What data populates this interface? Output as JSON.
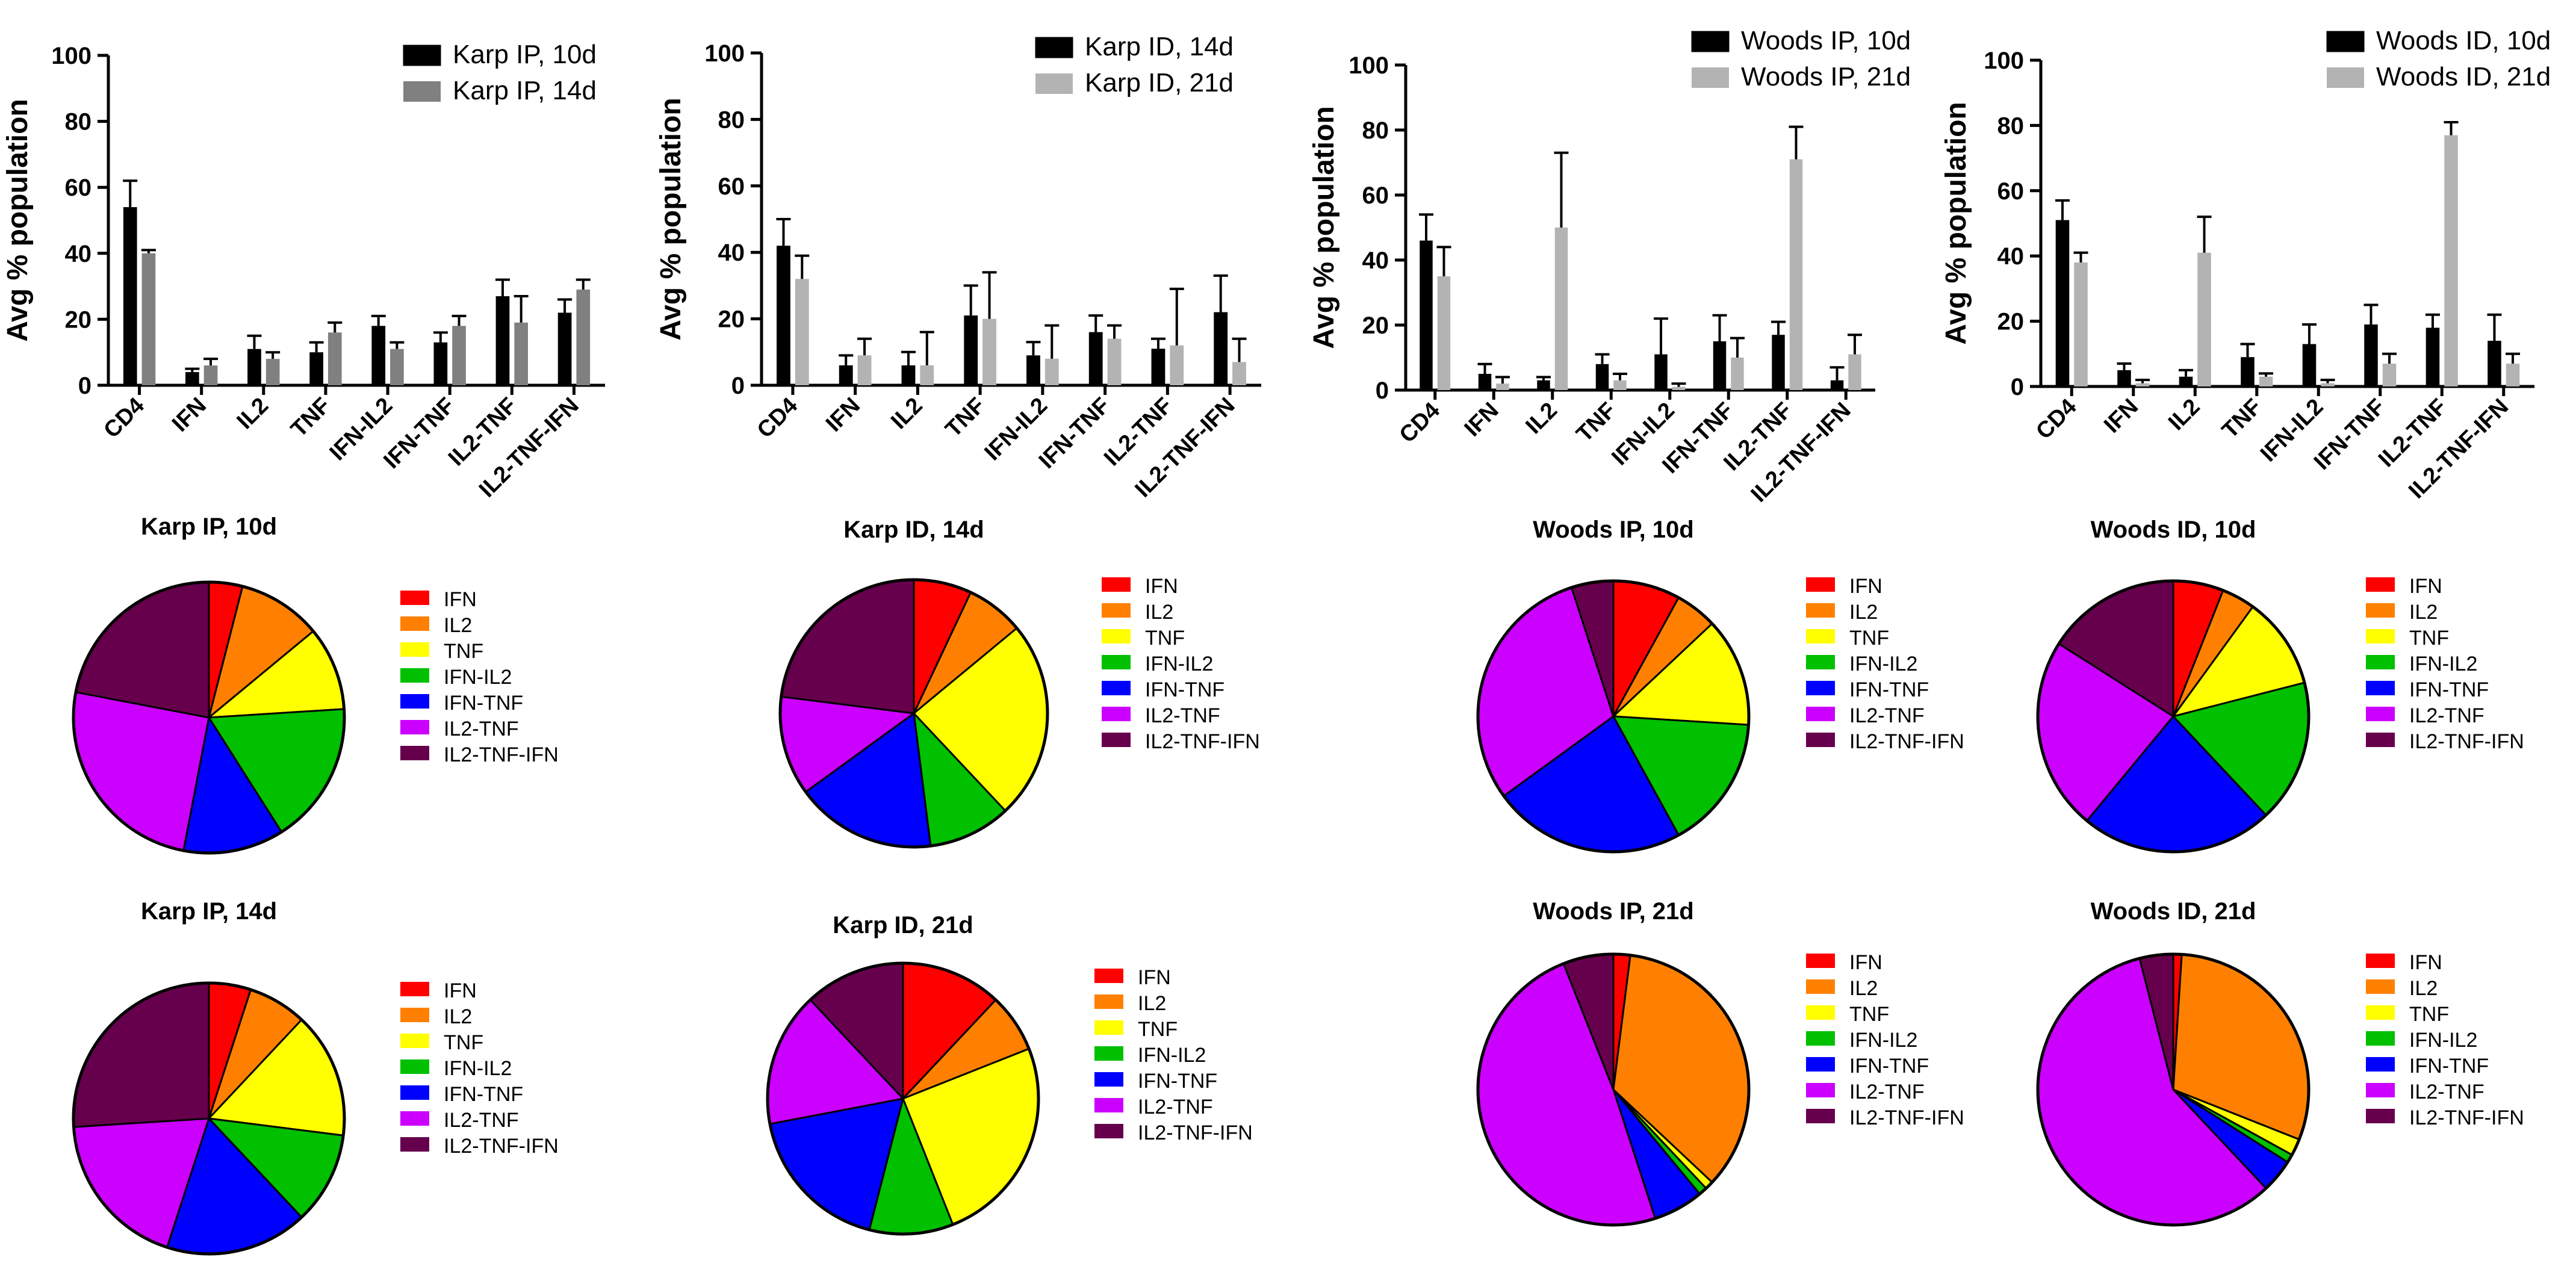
{
  "chart_data": [
    {
      "type": "bar",
      "ylabel": "Avg % population",
      "ylim": [
        0,
        100
      ],
      "yticks": [
        "0",
        "20",
        "40",
        "60",
        "80",
        "100"
      ],
      "categories": [
        "CD4",
        "IFN",
        "IL2",
        "TNF",
        "IFN-IL2",
        "IFN-TNF",
        "IL2-TNF",
        "IL2-TNF-IFN"
      ],
      "series": [
        {
          "name": "Karp IP, 10d",
          "color": "#000000",
          "values": [
            54,
            4,
            11,
            10,
            18,
            13,
            27,
            22
          ],
          "errors": [
            8,
            1,
            4,
            3,
            3,
            3,
            5,
            4
          ]
        },
        {
          "name": "Karp IP, 14d",
          "color": "#808080",
          "values": [
            40,
            6,
            8,
            16,
            11,
            18,
            19,
            29
          ],
          "errors": [
            1,
            2,
            2,
            3,
            2,
            3,
            8,
            3
          ]
        }
      ]
    },
    {
      "type": "bar",
      "ylabel": "Avg % population",
      "ylim": [
        0,
        100
      ],
      "yticks": [
        "0",
        "20",
        "40",
        "60",
        "80",
        "100"
      ],
      "categories": [
        "CD4",
        "IFN",
        "IL2",
        "TNF",
        "IFN-IL2",
        "IFN-TNF",
        "IL2-TNF",
        "IL2-TNF-IFN"
      ],
      "series": [
        {
          "name": "Karp ID, 14d",
          "color": "#000000",
          "values": [
            42,
            6,
            6,
            21,
            9,
            16,
            11,
            22
          ],
          "errors": [
            8,
            3,
            4,
            9,
            4,
            5,
            3,
            11
          ]
        },
        {
          "name": "Karp ID, 21d",
          "color": "#b3b3b3",
          "values": [
            32,
            9,
            6,
            20,
            8,
            14,
            12,
            7
          ],
          "errors": [
            7,
            5,
            10,
            14,
            10,
            4,
            17,
            7
          ]
        }
      ]
    },
    {
      "type": "bar",
      "ylabel": "Avg % population",
      "ylim": [
        0,
        100
      ],
      "yticks": [
        "0",
        "20",
        "40",
        "60",
        "80",
        "100"
      ],
      "categories": [
        "CD4",
        "IFN",
        "IL2",
        "TNF",
        "IFN-IL2",
        "IFN-TNF",
        "IL2-TNF",
        "IL2-TNF-IFN"
      ],
      "series": [
        {
          "name": "Woods IP, 10d",
          "color": "#000000",
          "values": [
            46,
            5,
            3,
            8,
            11,
            15,
            17,
            3
          ],
          "errors": [
            8,
            3,
            1,
            3,
            11,
            8,
            4,
            4
          ]
        },
        {
          "name": "Woods IP, 21d",
          "color": "#b3b3b3",
          "values": [
            35,
            2,
            50,
            3,
            1,
            10,
            71,
            11
          ],
          "errors": [
            9,
            2,
            23,
            2,
            1,
            6,
            10,
            6
          ]
        }
      ]
    },
    {
      "type": "bar",
      "ylabel": "Avg % population",
      "ylim": [
        0,
        100
      ],
      "yticks": [
        "0",
        "20",
        "40",
        "60",
        "80",
        "100"
      ],
      "categories": [
        "CD4",
        "IFN",
        "IL2",
        "TNF",
        "IFN-IL2",
        "IFN-TNF",
        "IL2-TNF",
        "IL2-TNF-IFN"
      ],
      "series": [
        {
          "name": "Woods ID, 10d",
          "color": "#000000",
          "values": [
            51,
            5,
            3,
            9,
            13,
            19,
            18,
            14
          ],
          "errors": [
            6,
            2,
            2,
            4,
            6,
            6,
            4,
            8
          ]
        },
        {
          "name": "Woods ID, 21d",
          "color": "#b3b3b3",
          "values": [
            38,
            1,
            41,
            3,
            1,
            7,
            77,
            7
          ],
          "errors": [
            3,
            1,
            11,
            1,
            1,
            3,
            4,
            3
          ]
        }
      ]
    },
    {
      "type": "pie",
      "title": "Karp IP, 10d",
      "labels": [
        "IFN",
        "IL2",
        "TNF",
        "IFN-IL2",
        "IFN-TNF",
        "IL2-TNF",
        "IL2-TNF-IFN"
      ],
      "values": [
        4,
        10,
        10,
        17,
        12,
        25,
        22
      ]
    },
    {
      "type": "pie",
      "title": "Karp ID, 14d",
      "labels": [
        "IFN",
        "IL2",
        "TNF",
        "IFN-IL2",
        "IFN-TNF",
        "IL2-TNF",
        "IL2-TNF-IFN"
      ],
      "values": [
        7,
        7,
        24,
        10,
        17,
        12,
        23
      ]
    },
    {
      "type": "pie",
      "title": "Woods IP, 10d",
      "labels": [
        "IFN",
        "IL2",
        "TNF",
        "IFN-IL2",
        "IFN-TNF",
        "IL2-TNF",
        "IL2-TNF-IFN"
      ],
      "values": [
        8,
        5,
        13,
        16,
        23,
        30,
        5
      ]
    },
    {
      "type": "pie",
      "title": "Woods ID, 10d",
      "labels": [
        "IFN",
        "IL2",
        "TNF",
        "IFN-IL2",
        "IFN-TNF",
        "IL2-TNF",
        "IL2-TNF-IFN"
      ],
      "values": [
        6,
        4,
        11,
        17,
        23,
        23,
        16
      ]
    },
    {
      "type": "pie",
      "title": "Karp IP, 14d",
      "labels": [
        "IFN",
        "IL2",
        "TNF",
        "IFN-IL2",
        "IFN-TNF",
        "IL2-TNF",
        "IL2-TNF-IFN"
      ],
      "values": [
        5,
        7,
        15,
        11,
        17,
        19,
        26
      ]
    },
    {
      "type": "pie",
      "title": "Karp ID, 21d",
      "labels": [
        "IFN",
        "IL2",
        "TNF",
        "IFN-IL2",
        "IFN-TNF",
        "IL2-TNF",
        "IL2-TNF-IFN"
      ],
      "values": [
        12,
        7,
        25,
        10,
        18,
        16,
        12
      ]
    },
    {
      "type": "pie",
      "title": "Woods IP, 21d",
      "labels": [
        "IFN",
        "IL2",
        "TNF",
        "IFN-IL2",
        "IFN-TNF",
        "IL2-TNF",
        "IL2-TNF-IFN"
      ],
      "values": [
        2,
        35,
        1,
        1,
        6,
        49,
        6
      ]
    },
    {
      "type": "pie",
      "title": "Woods ID, 21d",
      "labels": [
        "IFN",
        "IL2",
        "TNF",
        "IFN-IL2",
        "IFN-TNF",
        "IL2-TNF",
        "IL2-TNF-IFN"
      ],
      "values": [
        1,
        30,
        2,
        1,
        4,
        58,
        4
      ]
    }
  ],
  "pie_colors": [
    "#ff0000",
    "#ff8000",
    "#ffff00",
    "#00c000",
    "#0000ff",
    "#cc00ff",
    "#66004c"
  ]
}
